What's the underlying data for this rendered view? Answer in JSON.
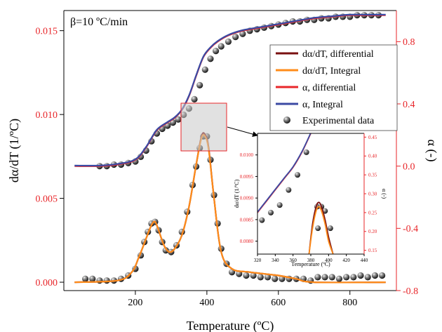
{
  "annotation": "β=10 ºC/min",
  "colors": {
    "dadt_differential": "#7a1010",
    "dadt_integral": "#ff8c1a",
    "alpha_differential": "#e8262a",
    "alpha_integral": "#3b4aa3",
    "experimental": "#303030",
    "right_axis": "#e8262a",
    "left_ticks": "#e8262a"
  },
  "chart_data": [
    {
      "type": "line",
      "xlabel": "Temperature (ºC)",
      "ylabel": "dα/dT (1/ºC)",
      "ylabel_right": "α (-)",
      "xlim": [
        0,
        930
      ],
      "ylim": [
        -0.0005,
        0.0162
      ],
      "ylim_right": [
        -0.8,
        1.0
      ],
      "xticks": [
        "200",
        "400",
        "600",
        "800"
      ],
      "yticks": [
        "0.000",
        "0.005",
        "0.010",
        "0.015"
      ],
      "yticks_right": [
        "-0.8",
        "-0.4",
        "0.0",
        "0.4",
        "0.8"
      ],
      "legend": [
        "dα/dT, differential",
        "dα/dT, Integral",
        "α, differential",
        "α, Integral",
        "Experimental data"
      ],
      "series": [
        {
          "name": "dα/dT, differential",
          "axis": "left",
          "x": [
            30,
            150,
            190,
            210,
            230,
            245,
            255,
            265,
            280,
            295,
            310,
            330,
            350,
            370,
            385,
            395,
            405,
            420,
            440,
            470,
            520,
            600,
            650,
            700,
            900
          ],
          "y": [
            0,
            0.0001,
            0.0006,
            0.0015,
            0.0026,
            0.0034,
            0.0036,
            0.0031,
            0.0022,
            0.0018,
            0.002,
            0.0028,
            0.0045,
            0.007,
            0.0087,
            0.0088,
            0.008,
            0.005,
            0.0018,
            0.0008,
            0.0006,
            0.0004,
            0.0002,
            0,
            0
          ]
        },
        {
          "name": "dα/dT, Integral",
          "axis": "left",
          "x": [
            30,
            150,
            190,
            210,
            230,
            245,
            255,
            265,
            280,
            295,
            310,
            330,
            350,
            370,
            385,
            395,
            405,
            420,
            440,
            470,
            520,
            600,
            650,
            700,
            900
          ],
          "y": [
            0,
            0.0001,
            0.0006,
            0.0015,
            0.0026,
            0.0034,
            0.0036,
            0.0031,
            0.0022,
            0.0018,
            0.002,
            0.0028,
            0.0045,
            0.007,
            0.0086,
            0.0087,
            0.0079,
            0.005,
            0.0018,
            0.0008,
            0.0006,
            0.0004,
            0.0002,
            0,
            0
          ]
        },
        {
          "name": "α, differential",
          "axis": "right",
          "x": [
            30,
            100,
            150,
            200,
            230,
            260,
            290,
            310,
            330,
            350,
            370,
            390,
            410,
            430,
            460,
            500,
            550,
            600,
            650,
            700,
            750,
            800,
            850,
            900
          ],
          "y": [
            0.0,
            0.0,
            0.01,
            0.04,
            0.12,
            0.23,
            0.28,
            0.31,
            0.36,
            0.45,
            0.58,
            0.7,
            0.76,
            0.8,
            0.84,
            0.87,
            0.89,
            0.91,
            0.93,
            0.95,
            0.96,
            0.97,
            0.97,
            0.97
          ]
        },
        {
          "name": "α, Integral",
          "axis": "right",
          "x": [
            30,
            100,
            150,
            200,
            230,
            260,
            290,
            310,
            330,
            350,
            370,
            390,
            410,
            430,
            460,
            500,
            550,
            600,
            650,
            700,
            750,
            800,
            850,
            900
          ],
          "y": [
            0.0,
            0.0,
            0.01,
            0.04,
            0.12,
            0.23,
            0.28,
            0.31,
            0.36,
            0.45,
            0.58,
            0.7,
            0.76,
            0.8,
            0.84,
            0.87,
            0.89,
            0.91,
            0.93,
            0.95,
            0.96,
            0.97,
            0.97,
            0.97
          ]
        }
      ],
      "experimental": {
        "name": "Experimental data",
        "dadt": {
          "x": [
            60,
            80,
            100,
            120,
            140,
            160,
            180,
            200,
            215,
            225,
            235,
            245,
            255,
            265,
            275,
            285,
            300,
            315,
            330,
            345,
            360,
            370,
            380,
            390,
            400,
            410,
            420,
            430,
            440,
            455,
            470,
            490,
            510,
            530,
            550,
            570,
            590,
            610,
            630,
            650,
            670,
            690,
            710,
            730,
            750,
            770,
            790,
            810,
            830,
            850,
            870,
            890
          ],
          "y": [
            0.0002,
            0.0002,
            0.0001,
            0.0001,
            0.0001,
            0.0002,
            0.0004,
            0.0008,
            0.0016,
            0.0024,
            0.003,
            0.0035,
            0.0036,
            0.0031,
            0.0024,
            0.0019,
            0.0018,
            0.0022,
            0.003,
            0.0042,
            0.0058,
            0.0069,
            0.008,
            0.0087,
            0.0087,
            0.0073,
            0.0052,
            0.0035,
            0.002,
            0.0011,
            0.0006,
            0.0005,
            0.0004,
            0.0004,
            0.0003,
            0.0003,
            0.0002,
            0.0002,
            0.0002,
            0.0002,
            0.0002,
            0.0001,
            0.0003,
            0.0003,
            0.0003,
            0.0002,
            0.0003,
            0.0003,
            0.0004,
            0.0003,
            0.0004,
            0.0004
          ]
        },
        "alpha": {
          "x": [
            100,
            120,
            140,
            160,
            180,
            200,
            215,
            230,
            245,
            260,
            275,
            290,
            305,
            320,
            335,
            350,
            365,
            380,
            395,
            410,
            425,
            440,
            460,
            480,
            500,
            520,
            540,
            560,
            580,
            600,
            620,
            640,
            660,
            680,
            700,
            720,
            740,
            760,
            780,
            800,
            820,
            840,
            860,
            880
          ],
          "y": [
            0.0,
            0.0,
            0.01,
            0.01,
            0.02,
            0.03,
            0.06,
            0.1,
            0.16,
            0.21,
            0.24,
            0.26,
            0.28,
            0.3,
            0.33,
            0.37,
            0.43,
            0.52,
            0.62,
            0.69,
            0.74,
            0.77,
            0.8,
            0.83,
            0.85,
            0.87,
            0.88,
            0.89,
            0.9,
            0.91,
            0.92,
            0.93,
            0.93,
            0.94,
            0.94,
            0.95,
            0.95,
            0.96,
            0.96,
            0.96,
            0.97,
            0.97,
            0.97,
            0.97
          ]
        }
      }
    },
    {
      "type": "line",
      "xlabel": "Temperature (ºC)",
      "ylabel": "dα/dT (1/ºC)",
      "ylabel_right": "α (-)",
      "xlim": [
        320,
        440
      ],
      "ylim": [
        0.0077,
        0.0105
      ],
      "ylim_right": [
        0.14,
        0.46
      ],
      "xticks": [
        "320",
        "340",
        "360",
        "380",
        "400",
        "420",
        "440"
      ],
      "yticks": [
        "0.0080",
        "0.0085",
        "0.0090",
        "0.0095",
        "0.0100"
      ],
      "yticks_right": [
        "0.15",
        "0.20",
        "0.25",
        "0.30",
        "0.35",
        "0.40",
        "0.45"
      ],
      "series": [
        {
          "name": "α, differential",
          "axis": "right",
          "x": [
            320,
            330,
            340,
            350,
            360,
            370,
            380
          ],
          "y": [
            0.25,
            0.28,
            0.31,
            0.34,
            0.37,
            0.41,
            0.46
          ]
        },
        {
          "name": "α, Integral",
          "axis": "right",
          "x": [
            320,
            330,
            340,
            350,
            360,
            370,
            380
          ],
          "y": [
            0.25,
            0.28,
            0.31,
            0.34,
            0.37,
            0.41,
            0.46
          ]
        },
        {
          "name": "dα/dT, differential",
          "axis": "left",
          "x": [
            378,
            382,
            386,
            389,
            392,
            396,
            400,
            405
          ],
          "y": [
            0.0077,
            0.0084,
            0.0088,
            0.0089,
            0.0088,
            0.0085,
            0.0081,
            0.0077
          ]
        },
        {
          "name": "dα/dT, Integral",
          "axis": "left",
          "x": [
            378,
            382,
            386,
            389,
            392,
            396,
            400,
            405
          ],
          "y": [
            0.0077,
            0.0083,
            0.0087,
            0.0088,
            0.0087,
            0.0084,
            0.008,
            0.0077
          ]
        }
      ],
      "experimental": {
        "alpha": {
          "x": [
            325,
            335,
            345,
            355,
            365,
            375
          ],
          "y": [
            0.23,
            0.25,
            0.27,
            0.31,
            0.35,
            0.41
          ]
        },
        "dadt": {
          "x": [
            387,
            392,
            396,
            388,
            402
          ],
          "y": [
            0.0088,
            0.0088,
            0.0087,
            0.0083,
            0.0083
          ]
        }
      }
    }
  ]
}
